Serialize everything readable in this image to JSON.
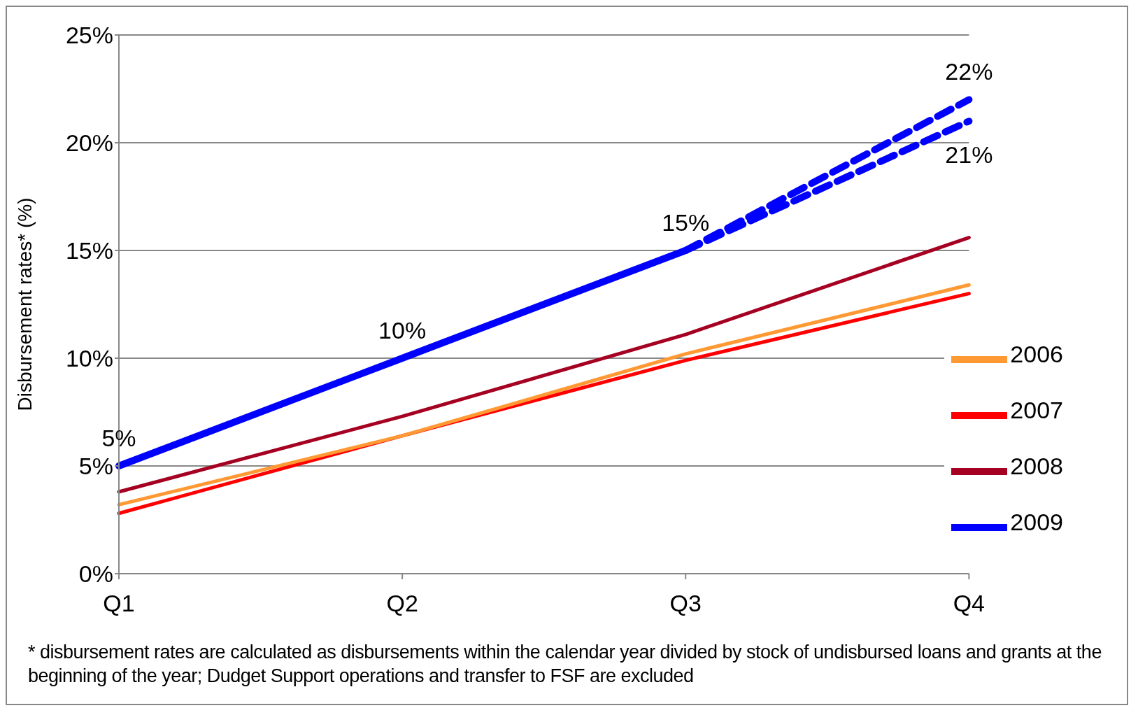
{
  "chart_data": {
    "type": "line",
    "ylabel": "Disbursement rates* (%)",
    "categories": [
      "Q1",
      "Q2",
      "Q3",
      "Q4"
    ],
    "ylim": [
      0,
      25
    ],
    "yticks": [
      {
        "value": 0,
        "label": "0%"
      },
      {
        "value": 5,
        "label": "5%"
      },
      {
        "value": 10,
        "label": "10%"
      },
      {
        "value": 15,
        "label": "15%"
      },
      {
        "value": 20,
        "label": "20%"
      },
      {
        "value": 25,
        "label": "25%"
      }
    ],
    "grid": "y",
    "legend": "bottom right",
    "marker": "none",
    "series": [
      {
        "name": "2009",
        "color": "#0000ff",
        "values": [
          5,
          10,
          15,
          null
        ],
        "value_labels": [
          "5%",
          "10%",
          "15%",
          null
        ],
        "line_style": "solid"
      },
      {
        "color": "#0000ff",
        "values": [
          null,
          null,
          15,
          22
        ],
        "value_labels": [
          null,
          null,
          null,
          "22%"
        ],
        "line_style": "dashed"
      },
      {
        "color": "#0000ff",
        "values": [
          null,
          null,
          15,
          21
        ],
        "value_labels": [
          null,
          null,
          null,
          "21%"
        ],
        "line_style": "dashed"
      },
      {
        "name": "2008",
        "color": "#a50021",
        "values": [
          3.8,
          7.3,
          11.1,
          15.6
        ],
        "line_style": "solid"
      },
      {
        "name": "2007",
        "color": "#ff0000",
        "values": [
          2.8,
          6.4,
          9.9,
          13.0
        ],
        "line_style": "solid"
      },
      {
        "name": "2006",
        "color": "#ff9933",
        "values": [
          3.2,
          6.4,
          10.2,
          13.4
        ],
        "line_style": "solid"
      }
    ],
    "annotations": [
      "* disbursement rates are calculated as disbursements within the calendar year divided by stock of undisbursed loans and grants at the beginning of the year; Dudget Support operations and transfer to FSF are excluded"
    ]
  }
}
